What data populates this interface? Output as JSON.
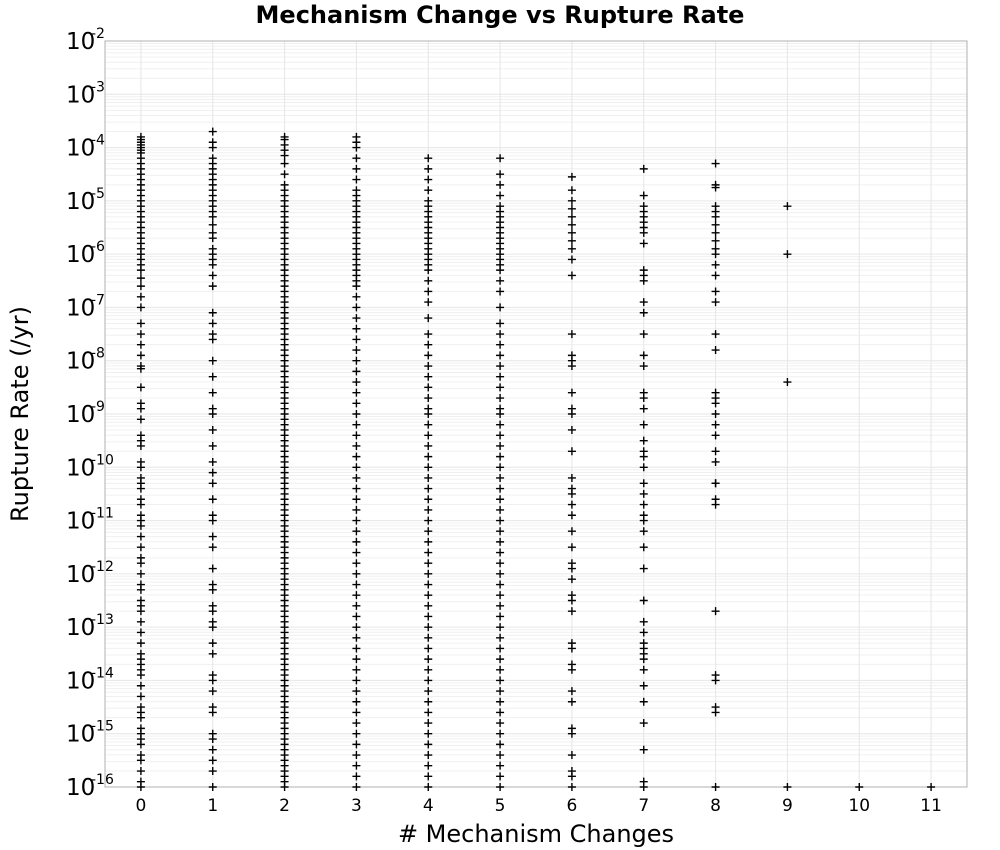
{
  "chart_data": {
    "type": "scatter",
    "title": "Mechanism Change vs Rupture Rate",
    "xlabel": "# Mechanism Changes",
    "ylabel": "Rupture Rate (/yr)",
    "x_ticks": [
      "0",
      "1",
      "2",
      "3",
      "4",
      "5",
      "6",
      "7",
      "8",
      "9",
      "10",
      "11"
    ],
    "xlim": [
      -0.5,
      11.5
    ],
    "y_scale": "log",
    "ylim": [
      1e-16,
      0.01
    ],
    "y_ticks": [
      {
        "base": "10",
        "exp": "-2",
        "value": 0.01
      },
      {
        "base": "10",
        "exp": "-3",
        "value": 0.001
      },
      {
        "base": "10",
        "exp": "-4",
        "value": 0.0001
      },
      {
        "base": "10",
        "exp": "-5",
        "value": 1e-05
      },
      {
        "base": "10",
        "exp": "-6",
        "value": 1e-06
      },
      {
        "base": "10",
        "exp": "-7",
        "value": 1e-07
      },
      {
        "base": "10",
        "exp": "-8",
        "value": 1e-08
      },
      {
        "base": "10",
        "exp": "-9",
        "value": 1e-09
      },
      {
        "base": "10",
        "exp": "-10",
        "value": 1e-10
      },
      {
        "base": "10",
        "exp": "-11",
        "value": 1e-11
      },
      {
        "base": "10",
        "exp": "-12",
        "value": 1e-12
      },
      {
        "base": "10",
        "exp": "-13",
        "value": 1e-13
      },
      {
        "base": "10",
        "exp": "-14",
        "value": 1e-14
      },
      {
        "base": "10",
        "exp": "-15",
        "value": 1e-15
      },
      {
        "base": "10",
        "exp": "-16",
        "value": 1e-16
      }
    ],
    "grid": true,
    "marker": "plus",
    "marker_color": "#000000",
    "points_log10": [
      {
        "x": 0,
        "y": [
          -3.8,
          -3.85,
          -3.9,
          -3.95,
          -4.0,
          -4.05,
          -4.1,
          -4.2,
          -4.3,
          -4.4,
          -4.5,
          -4.6,
          -4.7,
          -4.8,
          -4.9,
          -5.0,
          -5.1,
          -5.2,
          -5.3,
          -5.4,
          -5.5,
          -5.6,
          -5.7,
          -5.8,
          -5.9,
          -6.0,
          -6.1,
          -6.2,
          -6.3,
          -6.45,
          -6.6,
          -6.8,
          -7.0,
          -7.3,
          -7.5,
          -7.7,
          -7.9,
          -8.1,
          -8.15,
          -8.5,
          -8.8,
          -8.9,
          -9.1,
          -9.4,
          -9.5,
          -9.6,
          -9.9,
          -10.0,
          -10.2,
          -10.3,
          -10.4,
          -10.6,
          -10.7,
          -10.9,
          -11.0,
          -11.1,
          -11.3,
          -11.5,
          -11.7,
          -11.8,
          -12.0,
          -12.2,
          -12.3,
          -12.5,
          -12.6,
          -12.7,
          -12.9,
          -13.1,
          -13.3,
          -13.5,
          -13.6,
          -13.7,
          -13.8,
          -13.9,
          -14.1,
          -14.3,
          -14.5,
          -14.6,
          -14.7,
          -14.9,
          -15.0,
          -15.1,
          -15.2,
          -15.4,
          -15.5,
          -15.7,
          -15.9,
          -16.0
        ]
      },
      {
        "x": 1,
        "y": [
          -3.7,
          -3.9,
          -4.0,
          -4.2,
          -4.3,
          -4.4,
          -4.5,
          -4.6,
          -4.7,
          -4.8,
          -4.9,
          -5.0,
          -5.1,
          -5.2,
          -5.3,
          -5.45,
          -5.6,
          -5.7,
          -5.9,
          -6.0,
          -6.1,
          -6.2,
          -6.4,
          -6.6,
          -7.1,
          -7.3,
          -7.5,
          -7.6,
          -8.0,
          -8.3,
          -8.6,
          -8.9,
          -9.0,
          -9.3,
          -9.6,
          -9.9,
          -10.1,
          -10.3,
          -10.6,
          -10.9,
          -11.0,
          -11.3,
          -11.5,
          -11.9,
          -12.2,
          -12.3,
          -12.6,
          -12.7,
          -12.9,
          -13.0,
          -13.3,
          -13.5,
          -13.9,
          -14.0,
          -14.2,
          -14.5,
          -14.6,
          -15.0,
          -15.1,
          -15.3,
          -15.5,
          -15.7,
          -16.0
        ]
      },
      {
        "x": 2,
        "y": [
          -3.8,
          -3.85,
          -3.95,
          -4.05,
          -4.15,
          -4.3,
          -4.5,
          -4.7,
          -4.8,
          -4.9,
          -5.0,
          -5.1,
          -5.2,
          -5.3,
          -5.4,
          -5.5,
          -5.6,
          -5.7,
          -5.8,
          -5.9,
          -6.0,
          -6.1,
          -6.2,
          -6.3,
          -6.4,
          -6.5,
          -6.6,
          -6.7,
          -6.8,
          -6.9,
          -7.0,
          -7.1,
          -7.2,
          -7.3,
          -7.4,
          -7.5,
          -7.6,
          -7.7,
          -7.8,
          -7.9,
          -8.0,
          -8.1,
          -8.2,
          -8.3,
          -8.4,
          -8.5,
          -8.6,
          -8.7,
          -8.8,
          -8.9,
          -9.0,
          -9.1,
          -9.2,
          -9.3,
          -9.4,
          -9.5,
          -9.6,
          -9.7,
          -9.8,
          -9.9,
          -10.0,
          -10.1,
          -10.2,
          -10.3,
          -10.4,
          -10.5,
          -10.6,
          -10.7,
          -10.8,
          -10.9,
          -11.0,
          -11.1,
          -11.2,
          -11.3,
          -11.4,
          -11.5,
          -11.6,
          -11.7,
          -11.8,
          -11.9,
          -12.0,
          -12.1,
          -12.2,
          -12.3,
          -12.4,
          -12.5,
          -12.6,
          -12.7,
          -12.8,
          -12.9,
          -13.0,
          -13.1,
          -13.2,
          -13.3,
          -13.4,
          -13.5,
          -13.6,
          -13.7,
          -13.8,
          -13.9,
          -14.0,
          -14.1,
          -14.2,
          -14.3,
          -14.4,
          -14.5,
          -14.6,
          -14.7,
          -14.8,
          -14.9,
          -15.0,
          -15.1,
          -15.2,
          -15.3,
          -15.4,
          -15.5,
          -15.6,
          -15.7,
          -15.8,
          -15.9,
          -16.0
        ]
      },
      {
        "x": 3,
        "y": [
          -3.8,
          -3.9,
          -4.0,
          -4.2,
          -4.4,
          -4.6,
          -4.8,
          -4.9,
          -5.0,
          -5.1,
          -5.2,
          -5.3,
          -5.4,
          -5.5,
          -5.6,
          -5.7,
          -5.8,
          -5.9,
          -6.0,
          -6.1,
          -6.2,
          -6.3,
          -6.4,
          -6.5,
          -6.6,
          -6.8,
          -7.0,
          -7.2,
          -7.4,
          -7.6,
          -7.8,
          -8.0,
          -8.2,
          -8.4,
          -8.6,
          -8.8,
          -9.0,
          -9.2,
          -9.4,
          -9.6,
          -9.8,
          -10.0,
          -10.2,
          -10.4,
          -10.6,
          -10.8,
          -11.0,
          -11.2,
          -11.4,
          -11.6,
          -11.8,
          -12.0,
          -12.2,
          -12.4,
          -12.6,
          -12.8,
          -13.0,
          -13.2,
          -13.4,
          -13.6,
          -13.8,
          -14.0,
          -14.2,
          -14.4,
          -14.6,
          -14.8,
          -15.0,
          -15.2,
          -15.4,
          -15.6,
          -15.8,
          -16.0
        ]
      },
      {
        "x": 4,
        "y": [
          -4.2,
          -4.4,
          -4.6,
          -4.8,
          -5.0,
          -5.1,
          -5.2,
          -5.3,
          -5.4,
          -5.5,
          -5.6,
          -5.7,
          -5.8,
          -5.9,
          -6.0,
          -6.1,
          -6.2,
          -6.3,
          -6.5,
          -6.7,
          -6.9,
          -7.2,
          -7.5,
          -7.7,
          -7.9,
          -8.1,
          -8.3,
          -8.5,
          -8.7,
          -8.9,
          -9.0,
          -9.2,
          -9.4,
          -9.6,
          -9.8,
          -10.0,
          -10.2,
          -10.4,
          -10.6,
          -10.8,
          -11.0,
          -11.2,
          -11.4,
          -11.6,
          -11.8,
          -12.0,
          -12.2,
          -12.4,
          -12.6,
          -12.8,
          -13.0,
          -13.2,
          -13.4,
          -13.6,
          -13.8,
          -14.0,
          -14.2,
          -14.4,
          -14.6,
          -14.8,
          -15.0,
          -15.2,
          -15.4,
          -15.6,
          -15.8,
          -16.0
        ]
      },
      {
        "x": 5,
        "y": [
          -4.2,
          -4.5,
          -4.7,
          -4.9,
          -5.1,
          -5.2,
          -5.3,
          -5.4,
          -5.5,
          -5.6,
          -5.7,
          -5.8,
          -5.9,
          -6.0,
          -6.1,
          -6.2,
          -6.3,
          -6.5,
          -6.7,
          -7.0,
          -7.3,
          -7.5,
          -7.7,
          -7.9,
          -8.1,
          -8.3,
          -8.5,
          -8.7,
          -8.9,
          -9.0,
          -9.2,
          -9.4,
          -9.6,
          -9.8,
          -10.0,
          -10.2,
          -10.4,
          -10.6,
          -10.8,
          -11.0,
          -11.2,
          -11.4,
          -11.6,
          -11.8,
          -12.0,
          -12.2,
          -12.4,
          -12.6,
          -12.8,
          -13.0,
          -13.2,
          -13.4,
          -13.6,
          -13.8,
          -14.0,
          -14.2,
          -14.4,
          -14.6,
          -14.8,
          -15.0,
          -15.2,
          -15.4,
          -15.6,
          -15.8,
          -16.0
        ]
      },
      {
        "x": 6,
        "y": [
          -4.55,
          -4.8,
          -5.0,
          -5.15,
          -5.3,
          -5.45,
          -5.6,
          -5.75,
          -5.9,
          -6.1,
          -6.4,
          -7.5,
          -7.9,
          -8.0,
          -8.1,
          -8.6,
          -8.9,
          -9.0,
          -9.3,
          -9.7,
          -10.2,
          -10.4,
          -10.5,
          -10.7,
          -10.9,
          -11.2,
          -11.5,
          -11.8,
          -11.9,
          -12.1,
          -12.4,
          -12.5,
          -12.7,
          -13.3,
          -13.4,
          -13.7,
          -13.8,
          -14.2,
          -14.4,
          -14.9,
          -15.0,
          -15.4,
          -15.7,
          -15.8,
          -16.0
        ]
      },
      {
        "x": 7,
        "y": [
          -4.4,
          -4.9,
          -5.1,
          -5.2,
          -5.3,
          -5.4,
          -5.5,
          -5.6,
          -5.8,
          -6.3,
          -6.4,
          -6.5,
          -6.9,
          -7.1,
          -7.5,
          -7.9,
          -8.1,
          -8.6,
          -8.7,
          -8.9,
          -9.2,
          -9.5,
          -9.7,
          -9.8,
          -10.0,
          -10.3,
          -10.5,
          -10.7,
          -10.9,
          -11.0,
          -11.2,
          -11.5,
          -11.9,
          -12.5,
          -12.9,
          -13.1,
          -13.3,
          -13.4,
          -13.5,
          -13.6,
          -13.8,
          -14.1,
          -14.4,
          -14.8,
          -15.3,
          -15.9,
          -16.0
        ]
      },
      {
        "x": 8,
        "y": [
          -4.3,
          -4.7,
          -4.75,
          -5.1,
          -5.2,
          -5.3,
          -5.45,
          -5.6,
          -5.75,
          -5.9,
          -6.0,
          -6.2,
          -6.4,
          -6.7,
          -6.9,
          -7.5,
          -7.8,
          -8.6,
          -8.7,
          -8.8,
          -9.0,
          -9.2,
          -9.4,
          -9.7,
          -9.9,
          -10.3,
          -10.3,
          -10.6,
          -10.7,
          -12.7,
          -13.9,
          -14.0,
          -14.5,
          -14.6,
          -16.0
        ]
      },
      {
        "x": 9,
        "y": [
          -5.1,
          -6.0,
          -8.4,
          -16.0
        ]
      },
      {
        "x": 10,
        "y": [
          -16.0
        ]
      },
      {
        "x": 11,
        "y": [
          -16.0
        ]
      }
    ]
  }
}
